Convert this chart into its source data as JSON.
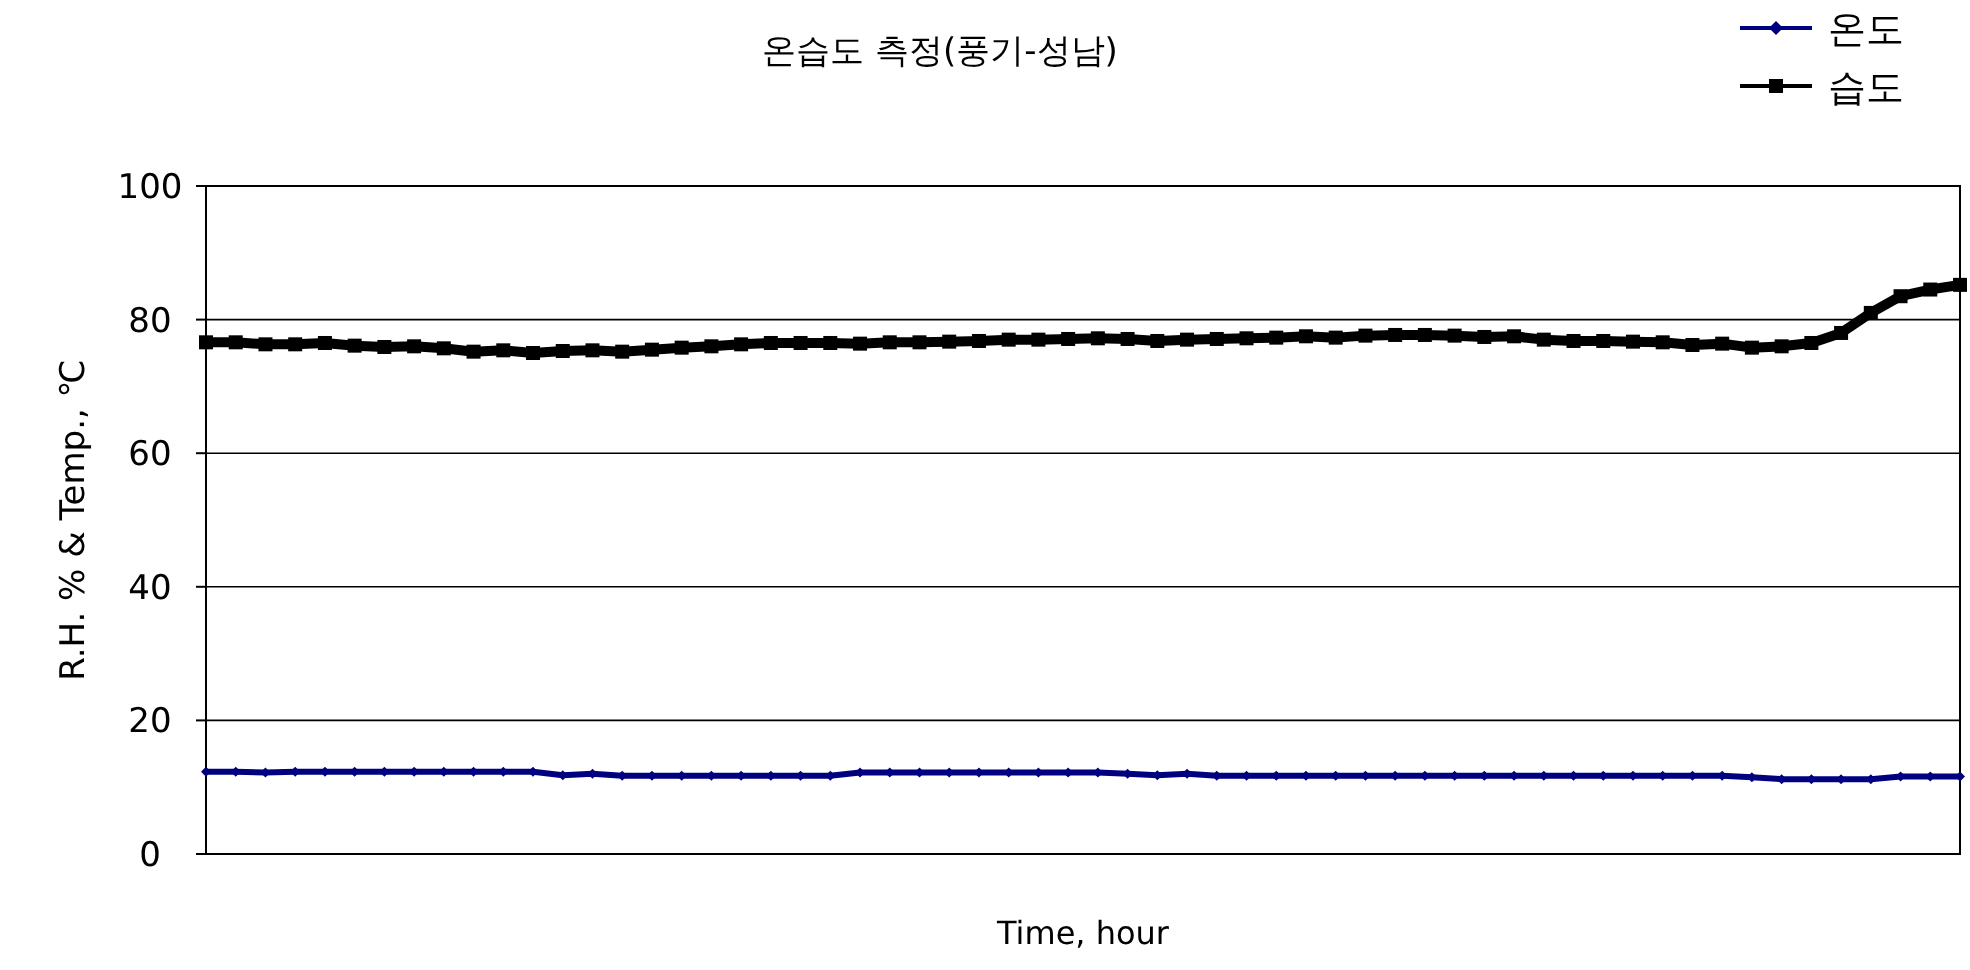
{
  "chart_data": {
    "type": "line",
    "title": "온습도 측정(풍기-성남)",
    "xlabel": "Time, hour",
    "ylabel": "R.H. % & Temp., ℃",
    "categories": [
      null,
      null,
      null,
      null,
      null,
      null,
      null,
      null,
      null,
      null,
      null,
      null,
      null,
      null,
      null,
      null,
      null,
      null,
      null,
      null,
      null,
      null,
      null,
      null,
      null,
      null,
      null,
      null,
      null,
      null,
      null,
      null,
      null,
      null,
      null,
      null,
      null,
      null,
      null,
      null,
      null,
      null,
      null,
      null,
      null,
      null,
      null,
      null,
      null,
      null,
      null,
      null,
      null,
      null,
      null,
      null,
      null,
      null,
      null,
      null
    ],
    "series": [
      {
        "name": "온도",
        "color": "#000080",
        "marker": "diamond",
        "values": [
          12.3,
          12.3,
          12.2,
          12.3,
          12.3,
          12.3,
          12.3,
          12.3,
          12.3,
          12.3,
          12.3,
          12.3,
          11.8,
          12.0,
          11.7,
          11.7,
          11.7,
          11.7,
          11.7,
          11.7,
          11.7,
          11.7,
          12.2,
          12.2,
          12.2,
          12.2,
          12.2,
          12.2,
          12.2,
          12.2,
          12.2,
          12.0,
          11.8,
          12.0,
          11.7,
          11.7,
          11.7,
          11.7,
          11.7,
          11.7,
          11.7,
          11.7,
          11.7,
          11.7,
          11.7,
          11.7,
          11.7,
          11.7,
          11.7,
          11.7,
          11.7,
          11.7,
          11.5,
          11.2,
          11.2,
          11.2,
          11.2,
          11.6,
          11.6,
          11.6
        ]
      },
      {
        "name": "습도",
        "color": "#000000",
        "marker": "square",
        "values": [
          76.6,
          76.6,
          76.3,
          76.3,
          76.5,
          76.1,
          75.9,
          76.0,
          75.7,
          75.2,
          75.4,
          75.0,
          75.3,
          75.4,
          75.2,
          75.5,
          75.8,
          76.0,
          76.3,
          76.5,
          76.5,
          76.5,
          76.4,
          76.6,
          76.6,
          76.7,
          76.8,
          77.0,
          77.0,
          77.1,
          77.2,
          77.1,
          76.8,
          77.0,
          77.1,
          77.2,
          77.3,
          77.5,
          77.3,
          77.6,
          77.7,
          77.7,
          77.6,
          77.4,
          77.5,
          77.0,
          76.8,
          76.8,
          76.7,
          76.6,
          76.2,
          76.4,
          75.8,
          76.0,
          76.5,
          78.0,
          81.0,
          83.5,
          84.5,
          85.2
        ]
      }
    ],
    "ylim": [
      0,
      100
    ],
    "yticks": [
      0,
      20,
      40,
      60,
      80,
      100
    ],
    "grid": "y",
    "legend": "top right"
  }
}
